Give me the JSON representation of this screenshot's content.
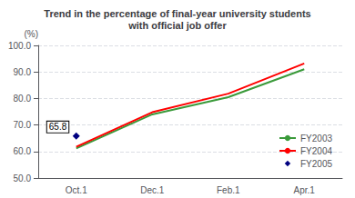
{
  "chart_data": {
    "type": "line",
    "title": "Trend in the percentage of final-year university students\nwith official job offer",
    "y_label": "(%)",
    "categories": [
      "Oct.1",
      "Dec.1",
      "Feb.1",
      "Apr.1"
    ],
    "series": [
      {
        "name": "FY2003",
        "color": "#3a9a3a",
        "values": [
          61.2,
          74.0,
          80.5,
          91.0
        ]
      },
      {
        "name": "FY2004",
        "color": "#ff0000",
        "values": [
          61.8,
          74.8,
          81.8,
          93.2
        ]
      },
      {
        "name": "FY2005",
        "color": "#000080",
        "values": [
          65.8,
          null,
          null,
          null
        ],
        "marker": "diamond",
        "line_style": "none"
      }
    ],
    "annotations": [
      {
        "text": "65.8",
        "x": "Oct.1",
        "y": 65.8
      }
    ],
    "ylim": [
      50.0,
      100.0
    ],
    "yticks": [
      {
        "value": 50,
        "label": "50.0"
      },
      {
        "value": 60,
        "label": "60.0"
      },
      {
        "value": 70,
        "label": "70.0"
      },
      {
        "value": 80,
        "label": "80.0"
      },
      {
        "value": 90,
        "label": "90.0"
      },
      {
        "value": 100,
        "label": "100.0"
      }
    ],
    "grid": true,
    "legend": "lower right"
  }
}
